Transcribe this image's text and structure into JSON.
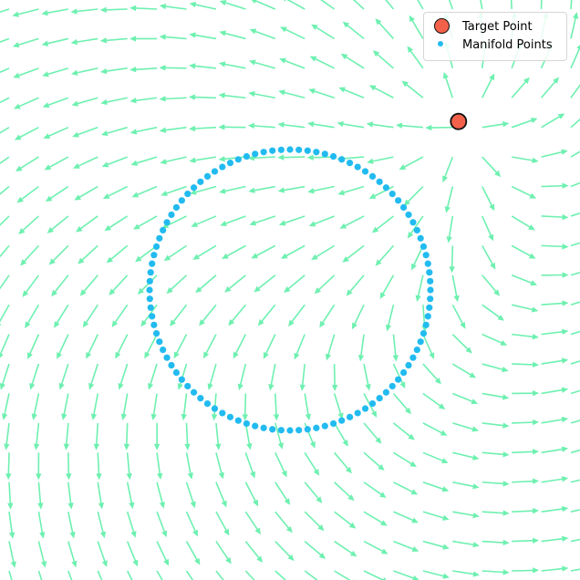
{
  "chart_data": {
    "type": "scatter",
    "title": "",
    "xlabel": "",
    "ylabel": "",
    "axes_visible": false,
    "grid": false,
    "xlim": [
      -3,
      3
    ],
    "ylim": [
      -3,
      3
    ],
    "legend_position": "top-right",
    "background": {
      "type": "quiver",
      "color": "#6ef0b0",
      "description": "vector field: rotation about origin plus repulsion from target point",
      "grid_range": [
        -3,
        3
      ],
      "grid_count": 20
    },
    "series": [
      {
        "name": "Target Point",
        "kind": "point",
        "x": [
          1.8
        ],
        "y": [
          1.8
        ],
        "color": "#f4614a",
        "edgecolor": "#111111"
      },
      {
        "name": "Manifold Points",
        "kind": "circle",
        "center": [
          0,
          0
        ],
        "radius": 1.5,
        "count": 100,
        "color": "#22bbf0"
      }
    ]
  }
}
